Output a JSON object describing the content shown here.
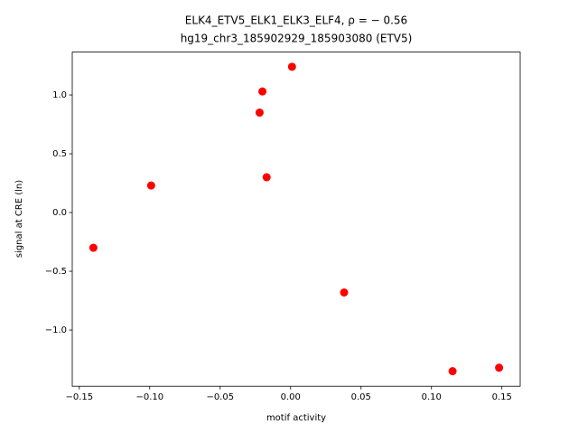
{
  "chart_data": {
    "type": "scatter",
    "title": "ELK4_ETV5_ELK1_ELK3_ELF4, ρ = − 0.56",
    "subtitle": "hg19_chr3_185902929_185903080 (ETV5)",
    "xlabel": "motif activity",
    "ylabel": "signal at CRE (ln)",
    "color": "#ff0000",
    "x": [
      -0.14,
      -0.099,
      -0.022,
      -0.02,
      -0.017,
      0.001,
      0.038,
      0.115,
      0.148
    ],
    "values": [
      -0.3,
      0.23,
      0.85,
      1.03,
      0.3,
      1.24,
      -0.68,
      -1.35,
      -1.32
    ],
    "xlim": [
      -0.155,
      0.163
    ],
    "ylim": [
      -1.478,
      1.365
    ],
    "xticks": [
      {
        "value": -0.15,
        "label": "−0.15"
      },
      {
        "value": -0.1,
        "label": "−0.10"
      },
      {
        "value": -0.05,
        "label": "−0.05"
      },
      {
        "value": 0,
        "label": "0.00"
      },
      {
        "value": 0.05,
        "label": "0.05"
      },
      {
        "value": 0.1,
        "label": "0.10"
      },
      {
        "value": 0.15,
        "label": "0.15"
      }
    ],
    "yticks": [
      {
        "value": -1.0,
        "label": "−1.0"
      },
      {
        "value": -0.5,
        "label": "−0.5"
      },
      {
        "value": 0,
        "label": "0.0"
      },
      {
        "value": 0.5,
        "label": "0.5"
      },
      {
        "value": 1.0,
        "label": "1.0"
      }
    ],
    "grid": false
  }
}
